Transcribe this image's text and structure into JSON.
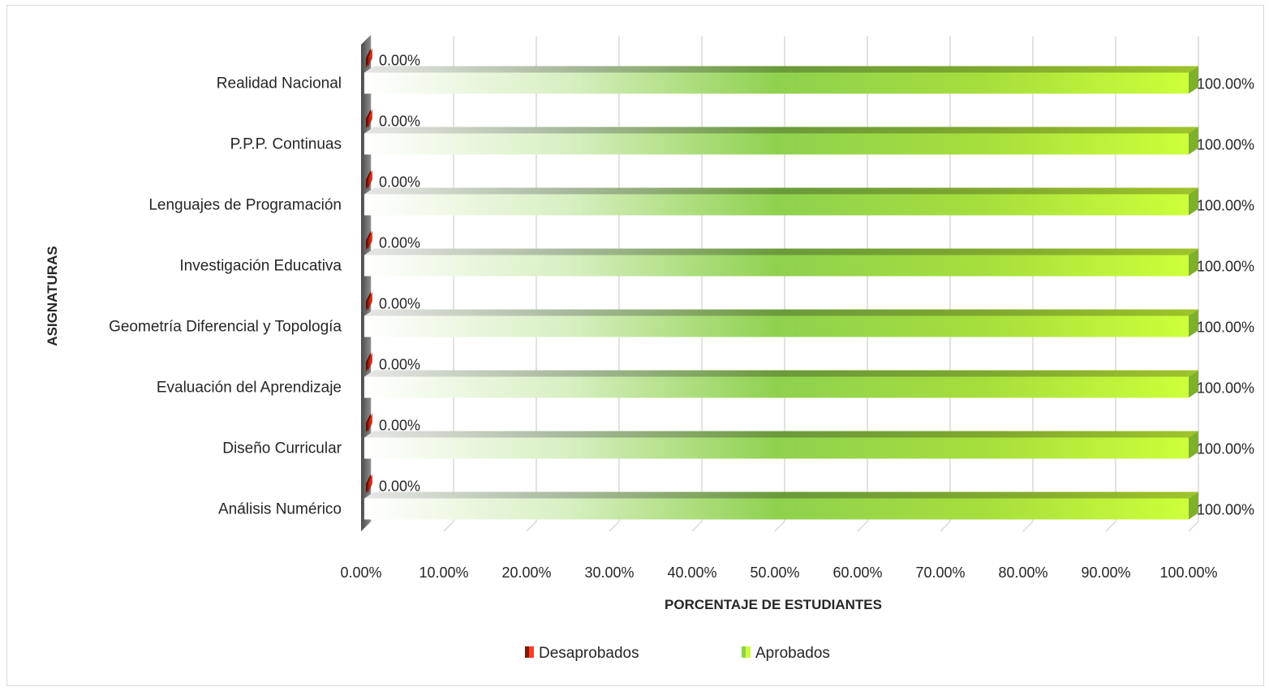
{
  "chart_data": {
    "type": "bar",
    "orientation": "horizontal",
    "style": "3d",
    "categories": [
      "Realidad Nacional",
      "P.P.P. Continuas",
      "Lenguajes de Programación",
      "Investigación Educativa",
      "Geometría Diferencial y Topología",
      "Evaluación del Aprendizaje",
      "Diseño Curricular",
      "Análisis Numérico"
    ],
    "series": [
      {
        "name": "Desaprobados",
        "values": [
          0,
          0,
          0,
          0,
          0,
          0,
          0,
          0
        ],
        "labels": [
          "0.00%",
          "0.00%",
          "0.00%",
          "0.00%",
          "0.00%",
          "0.00%",
          "0.00%",
          "0.00%"
        ],
        "color": "#c0392b"
      },
      {
        "name": "Aprobados",
        "values": [
          100,
          100,
          100,
          100,
          100,
          100,
          100,
          100
        ],
        "labels": [
          "100.00%",
          "100.00%",
          "100.00%",
          "100.00%",
          "100.00%",
          "100.00%",
          "100.00%",
          "100.00%"
        ],
        "color": "#8fd14f"
      }
    ],
    "title": "",
    "xlabel": "PORCENTAJE DE ESTUDIANTES",
    "ylabel": "ASIGNATURAS",
    "xlim": [
      0,
      100
    ],
    "xticks": [
      0,
      10,
      20,
      30,
      40,
      50,
      60,
      70,
      80,
      90,
      100
    ],
    "xtick_labels": [
      "0.00%",
      "10.00%",
      "20.00%",
      "30.00%",
      "40.00%",
      "50.00%",
      "60.00%",
      "70.00%",
      "80.00%",
      "90.00%",
      "100.00%"
    ],
    "grid": true,
    "legend": "bottom"
  }
}
